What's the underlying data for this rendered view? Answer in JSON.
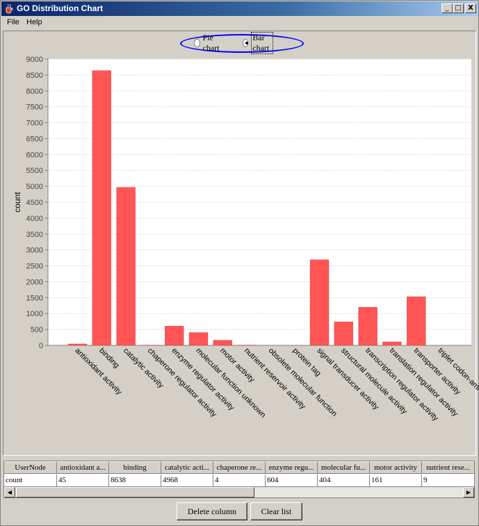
{
  "window": {
    "title": "GO Distribution Chart",
    "minimize": "_",
    "maximize": "□",
    "close": "X"
  },
  "menu": [
    "File",
    "Help"
  ],
  "chart_type": {
    "options": [
      "Pie chart",
      "Bar chart"
    ],
    "selected": "Bar chart"
  },
  "chart_data": {
    "type": "bar",
    "ylabel": "count",
    "xlabel": "",
    "ylim": [
      0,
      9000
    ],
    "yticks": [
      0,
      500,
      1000,
      1500,
      2000,
      2500,
      3000,
      3500,
      4000,
      4500,
      5000,
      5500,
      6000,
      6500,
      7000,
      7500,
      8000,
      8500,
      9000
    ],
    "color": "#ff5555",
    "categories": [
      "antioxidant activity",
      "binding",
      "catalytic activity",
      "chaperone regulator activity",
      "enzyme regulator activity",
      "molecular function unknown",
      "motor activity",
      "nutrient reservoir activity",
      "obsolete molecular function",
      "protein tag",
      "signal transducer activity",
      "structural molecule activity",
      "transcription regulator activity",
      "translation regulator activity",
      "transporter activity",
      "triplet codon-ami"
    ],
    "values": [
      45,
      8638,
      4968,
      4,
      604,
      404,
      161,
      9,
      0,
      0,
      2690,
      740,
      1200,
      110,
      1530,
      0
    ]
  },
  "table": {
    "headers": [
      "UserNode",
      "antioxidant a...",
      "binding",
      "catalytic acti...",
      "chaperone re...",
      "enzyme regu...",
      "molecular fu...",
      "motor activity",
      "nutrient rese..."
    ],
    "row": [
      "count",
      "45",
      "8638",
      "4968",
      "4",
      "604",
      "404",
      "161",
      "9"
    ]
  },
  "scrollbar": {
    "left_arrow": "◀",
    "right_arrow": "▶"
  },
  "buttons": {
    "delete": "Delete column",
    "clear": "Clear list"
  }
}
